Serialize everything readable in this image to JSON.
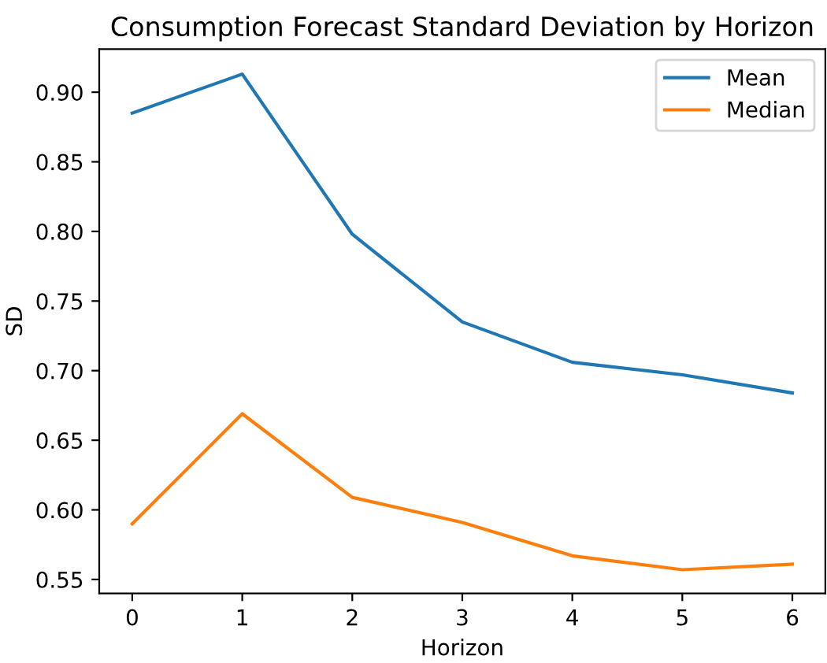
{
  "chart_data": {
    "type": "line",
    "title": "Consumption Forecast Standard Deviation by Horizon",
    "xlabel": "Horizon",
    "ylabel": "SD",
    "x": [
      0,
      1,
      2,
      3,
      4,
      5,
      6
    ],
    "series": [
      {
        "name": "Mean",
        "color": "#1f77b4",
        "values": [
          0.885,
          0.913,
          0.798,
          0.735,
          0.706,
          0.697,
          0.684
        ]
      },
      {
        "name": "Median",
        "color": "#ff7f0e",
        "values": [
          0.59,
          0.669,
          0.609,
          0.591,
          0.567,
          0.557,
          0.561
        ]
      }
    ],
    "xlim": [
      -0.3,
      6.3
    ],
    "xticks": [
      0,
      1,
      2,
      3,
      4,
      5,
      6
    ],
    "ylim": [
      0.54,
      0.931
    ],
    "yticks": [
      0.55,
      {
        "value": 0.6,
        "label": "0.60"
      },
      0.65,
      {
        "value": 0.7,
        "label": "0.70"
      },
      0.75,
      {
        "value": 0.8,
        "label": "0.80"
      },
      0.85,
      {
        "value": 0.9,
        "label": "0.90"
      }
    ],
    "legend": "top right",
    "grid": false
  }
}
